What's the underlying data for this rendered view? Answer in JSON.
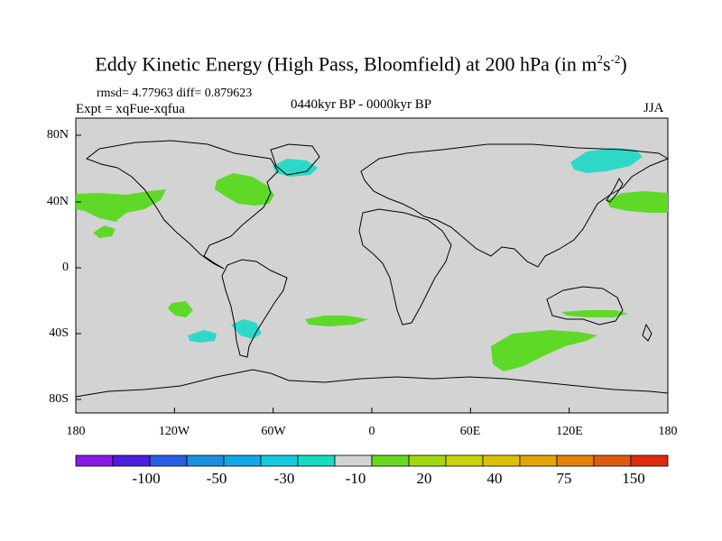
{
  "title": {
    "main": "Eddy Kinetic Energy (High Pass, Bloomfield) at 200 hPa (in m",
    "sup1": "2",
    "mid": "s",
    "sup2": "-2",
    "close": ")"
  },
  "stats": {
    "rmsd": "rmsd= 4.77963 diff= 0.879623"
  },
  "experiment": "Expt = xqFue-xqfua",
  "period": "0440kyr BP - 0000kyr BP",
  "season": "JJA",
  "map": {
    "x_ticks": [
      "180",
      "120W",
      "60W",
      "0",
      "60E",
      "120E",
      "180"
    ],
    "y_ticks": [
      "80N",
      "40N",
      "0",
      "40S",
      "80S"
    ],
    "land_color": "#d3d3d3",
    "coast_color": "#000000"
  },
  "colorbar": {
    "colors": [
      "#8a19e6",
      "#4a1fe0",
      "#2a5ee6",
      "#1a8fe0",
      "#11a9e6",
      "#16c8e0",
      "#15dcc0",
      "#d3d3d3",
      "#6ad91e",
      "#a3d80e",
      "#c9d20a",
      "#ddc005",
      "#e3a407",
      "#e48308",
      "#e35a0f",
      "#e02a0f"
    ],
    "labels": [
      "-100",
      "-50",
      "-30",
      "-10",
      "20",
      "40",
      "75",
      "150"
    ]
  },
  "anomaly_colors": {
    "positive": "#5ed928",
    "negative": "#2ed8c8"
  }
}
